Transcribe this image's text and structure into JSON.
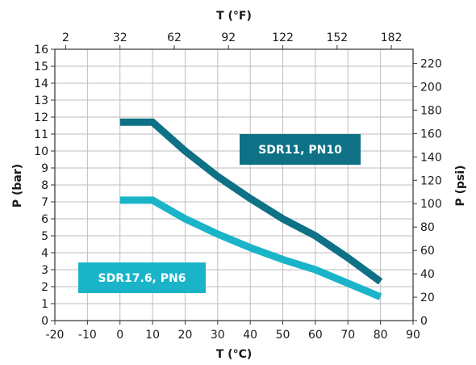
{
  "chart_data": {
    "type": "line",
    "x_axis_bottom": {
      "title": "T (°C)",
      "ticks": [
        -20,
        -10,
        0,
        10,
        20,
        30,
        40,
        50,
        60,
        70,
        80,
        90
      ],
      "range": [
        -20,
        90
      ]
    },
    "x_axis_top": {
      "title": "T (°F)",
      "ticks": [
        2,
        32,
        62,
        92,
        122,
        152,
        182
      ],
      "tick_labels": [
        "2",
        "32",
        "62",
        "92",
        "122",
        "152",
        "182"
      ]
    },
    "y_axis_left": {
      "title": "P (bar)",
      "ticks": [
        0,
        1,
        2,
        3,
        4,
        5,
        6,
        7,
        8,
        9,
        10,
        11,
        12,
        13,
        14,
        15,
        16
      ],
      "range": [
        0,
        16
      ]
    },
    "y_axis_right": {
      "title": "P (psi)",
      "ticks": [
        0,
        20,
        40,
        60,
        80,
        100,
        120,
        140,
        160,
        180,
        200,
        220
      ],
      "tick_labels": [
        "0",
        "20",
        "40",
        "60",
        "80",
        "100",
        "120",
        "140",
        "160",
        "180",
        "200",
        "220"
      ]
    },
    "grid": true,
    "series": [
      {
        "name": "SDR11, PN10",
        "color": "#0e7185",
        "x": [
          0,
          10,
          20,
          30,
          40,
          50,
          60,
          70,
          80
        ],
        "y": [
          11.7,
          11.7,
          10.0,
          8.5,
          7.2,
          6.0,
          5.0,
          3.7,
          2.3
        ]
      },
      {
        "name": "SDR17.6, PN6",
        "color": "#1ab4c8",
        "x": [
          0,
          10,
          20,
          30,
          40,
          50,
          60,
          70,
          80
        ],
        "y": [
          7.1,
          7.1,
          6.0,
          5.1,
          4.3,
          3.6,
          3.0,
          2.2,
          1.4
        ]
      }
    ]
  }
}
